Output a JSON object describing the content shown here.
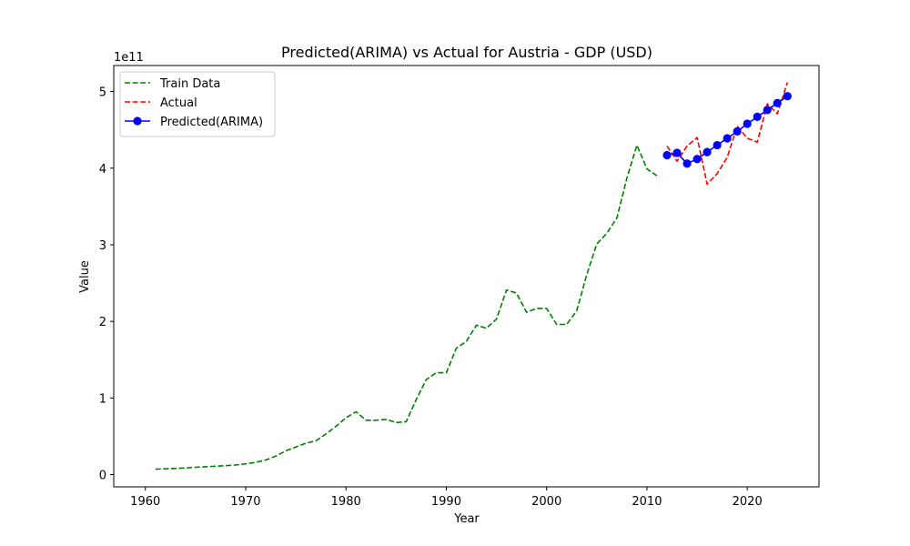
{
  "chart_data": {
    "type": "line",
    "title": "Predicted(ARIMA) vs Actual for Austria - GDP (USD)",
    "xlabel": "Year",
    "ylabel": "Value",
    "y_offset_text": "1e11",
    "xlim": [
      1956.85,
      2027.15
    ],
    "ylim": [
      -0.16,
      5.34
    ],
    "y_scale_factor": 100000000000,
    "xticks": [
      1960,
      1970,
      1980,
      1990,
      2000,
      2010,
      2020
    ],
    "yticks": [
      0,
      1,
      2,
      3,
      4,
      5
    ],
    "legend_position": "top-left",
    "series": [
      {
        "name": "Train Data",
        "style": "dashed",
        "color": "#008000",
        "marker": "none",
        "x": [
          1961,
          1962,
          1963,
          1964,
          1965,
          1966,
          1967,
          1968,
          1969,
          1970,
          1971,
          1972,
          1973,
          1974,
          1975,
          1976,
          1977,
          1978,
          1979,
          1980,
          1981,
          1982,
          1983,
          1984,
          1985,
          1986,
          1987,
          1988,
          1989,
          1990,
          1991,
          1992,
          1993,
          1994,
          1995,
          1996,
          1997,
          1998,
          1999,
          2000,
          2001,
          2002,
          2003,
          2004,
          2005,
          2006,
          2007,
          2008,
          2009,
          2010,
          2011
        ],
        "y": [
          0.07,
          0.075,
          0.08,
          0.087,
          0.095,
          0.103,
          0.11,
          0.117,
          0.125,
          0.14,
          0.16,
          0.19,
          0.24,
          0.31,
          0.36,
          0.41,
          0.44,
          0.53,
          0.63,
          0.74,
          0.82,
          0.71,
          0.71,
          0.72,
          0.68,
          0.69,
          0.98,
          1.24,
          1.33,
          1.33,
          1.65,
          1.74,
          1.95,
          1.91,
          2.03,
          2.41,
          2.37,
          2.12,
          2.17,
          2.17,
          1.96,
          1.96,
          2.14,
          2.61,
          3.01,
          3.15,
          3.35,
          3.87,
          4.3,
          3.99,
          3.9
        ]
      },
      {
        "name": "Actual",
        "style": "dashed",
        "color": "#ff0000",
        "marker": "none",
        "x": [
          2012,
          2013,
          2014,
          2015,
          2016,
          2017,
          2018,
          2019,
          2020,
          2021,
          2022,
          2023,
          2024
        ],
        "y": [
          4.29,
          4.09,
          4.29,
          4.4,
          3.79,
          3.93,
          4.14,
          4.55,
          4.39,
          4.34,
          4.84,
          4.71,
          5.12
        ]
      },
      {
        "name": "Predicted(ARIMA)",
        "style": "solid",
        "color": "#0000ff",
        "marker": "circle",
        "x": [
          2012,
          2013,
          2014,
          2015,
          2016,
          2017,
          2018,
          2019,
          2020,
          2021,
          2022,
          2023,
          2024
        ],
        "y": [
          4.17,
          4.2,
          4.06,
          4.12,
          4.21,
          4.3,
          4.39,
          4.48,
          4.58,
          4.67,
          4.76,
          4.85,
          4.94
        ]
      }
    ]
  }
}
